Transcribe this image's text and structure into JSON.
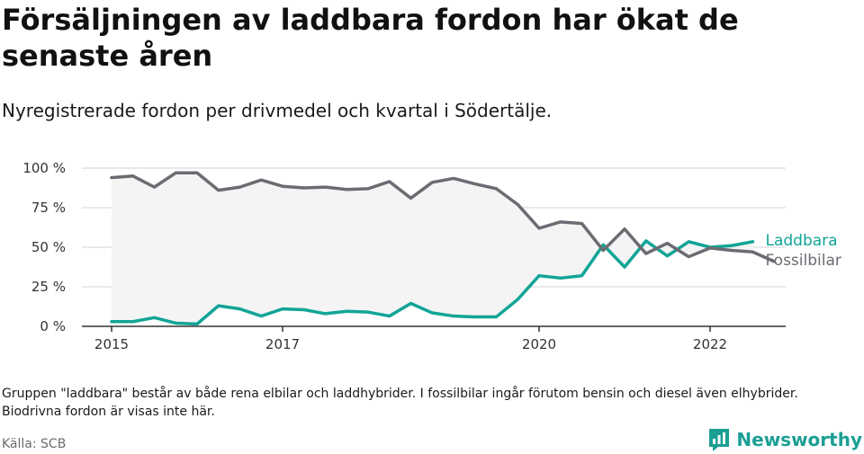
{
  "header": {
    "title": "Försäljningen av laddbara fordon har ökat de senaste åren",
    "subtitle": "Nyregistrerade fordon per drivmedel och kvartal i Södertälje."
  },
  "footer": {
    "note": "Gruppen \"laddbara\" består av både rena elbilar och laddhybrider. I fossilbilar ingår förutom bensin och diesel även elhybrider. Biodrivna fordon är visas inte här.",
    "source": "Källa: SCB",
    "brand": "Newsworthy"
  },
  "colors": {
    "laddbara": "#11a497",
    "fossilbilar": "#6d6b72",
    "brand": "#1b9f94",
    "grid": "#e2e2e2",
    "fill": "#f4f4f4"
  },
  "chart_data": {
    "type": "line",
    "title": "Försäljningen av laddbara fordon har ökat de senaste åren",
    "subtitle": "Nyregistrerade fordon per drivmedel och kvartal i Södertälje.",
    "xlabel": "",
    "ylabel": "",
    "x_unit": "quarter",
    "x": [
      "2015Q1",
      "2015Q2",
      "2015Q3",
      "2015Q4",
      "2016Q1",
      "2016Q2",
      "2016Q3",
      "2016Q4",
      "2017Q1",
      "2017Q2",
      "2017Q3",
      "2017Q4",
      "2018Q1",
      "2018Q2",
      "2018Q3",
      "2018Q4",
      "2019Q1",
      "2019Q2",
      "2019Q3",
      "2019Q4",
      "2020Q1",
      "2020Q2",
      "2020Q3",
      "2020Q4",
      "2021Q1",
      "2021Q2",
      "2021Q3",
      "2021Q4",
      "2022Q1",
      "2022Q2",
      "2022Q3",
      "2022Q4"
    ],
    "x_ticks": [
      "2015",
      "2017",
      "2020",
      "2022"
    ],
    "x_tick_positions": [
      "2015Q1",
      "2017Q1",
      "2020Q1",
      "2022Q1"
    ],
    "ylim": [
      0,
      100
    ],
    "y_ticks": [
      0,
      25,
      50,
      75,
      100
    ],
    "y_tick_labels": [
      "0 %",
      "25 %",
      "50 %",
      "75 %",
      "100 %"
    ],
    "grid": true,
    "legend": "direct labels at line ends, right",
    "series": [
      {
        "name": "Laddbara",
        "color": "#11a497",
        "values": [
          3,
          3,
          5.5,
          2,
          1.5,
          13,
          11,
          6.5,
          11,
          10.5,
          8,
          9.5,
          9,
          6.5,
          14.5,
          8.5,
          6.5,
          6,
          6,
          17,
          32,
          30.5,
          32,
          51.5,
          37.5,
          54,
          44.5,
          53.5,
          50,
          51,
          53.5,
          null
        ]
      },
      {
        "name": "Fossilbilar",
        "color": "#6d6b72",
        "values": [
          94,
          95,
          88,
          97,
          97,
          86,
          88,
          92.5,
          88.5,
          87.5,
          88,
          86.5,
          87,
          91.5,
          81,
          91,
          93.5,
          90,
          87,
          77,
          62,
          66,
          65,
          48,
          61.5,
          46,
          52.5,
          44,
          49.5,
          48,
          47,
          41
        ]
      }
    ]
  }
}
